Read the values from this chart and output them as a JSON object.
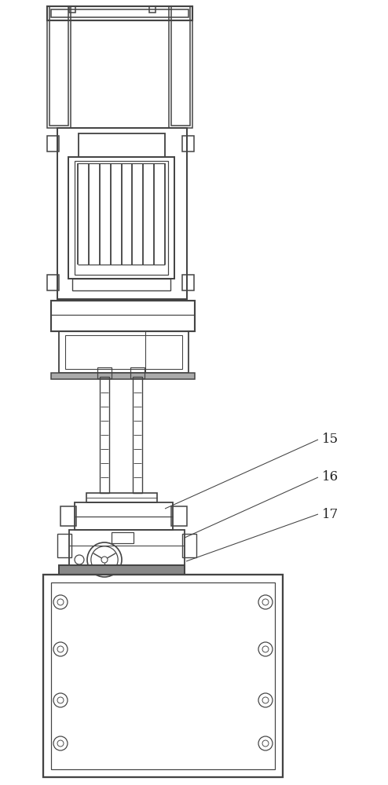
{
  "bg_color": "#ffffff",
  "line_color": "#444444",
  "line_width": 1.1,
  "fig_width": 4.94,
  "fig_height": 10.0,
  "label_fontsize": 12,
  "labels": [
    "15",
    "16",
    "17"
  ]
}
